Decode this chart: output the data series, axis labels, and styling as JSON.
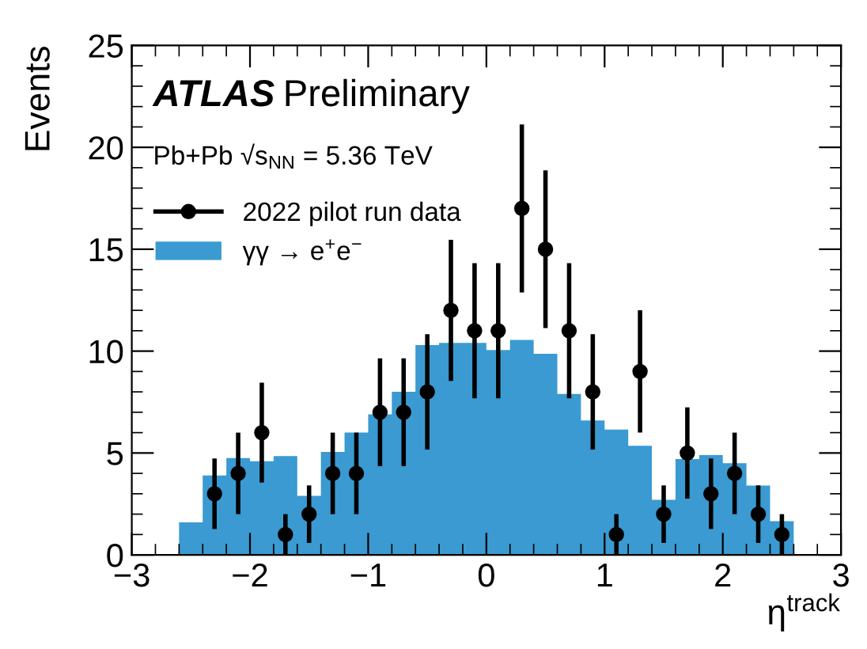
{
  "chart_data": {
    "type": "histogram",
    "xlabel": "η$^{track}$",
    "ylabel": "Events",
    "annotations": [
      "ATLAS",
      "Preliminary",
      "Pb+Pb √s$_{NN}$ = 5.36 TeV"
    ],
    "xlim": [
      -3,
      3
    ],
    "xticks": [
      -3,
      -2,
      -1,
      0,
      1,
      2,
      3
    ],
    "ylim": [
      0,
      25
    ],
    "yticks": [
      0,
      5,
      10,
      15,
      20,
      25
    ],
    "legend": "top left",
    "grid": false,
    "series": [
      {
        "type": "histogram",
        "name": "γγ → e$^{+}$e$^{−}$",
        "color": "#3a9ad1",
        "bins": [
          -3.0,
          -2.8,
          -2.6,
          -2.4,
          -2.2,
          -2.0,
          -1.8,
          -1.6,
          -1.4,
          -1.2,
          -1.0,
          -0.8,
          -0.6,
          -0.4,
          -0.2,
          0.0,
          0.2,
          0.4,
          0.6,
          0.8,
          1.0,
          1.2,
          1.4,
          1.6,
          1.8,
          2.0,
          2.2,
          2.4,
          2.6,
          2.8,
          3.0
        ],
        "values": [
          0,
          0,
          1.6,
          3.9,
          4.75,
          4.6,
          4.85,
          2.9,
          5.05,
          6.0,
          6.9,
          8.0,
          10.3,
          10.4,
          10.4,
          10.05,
          10.55,
          9.87,
          7.9,
          6.6,
          6.15,
          5.35,
          2.7,
          4.7,
          4.9,
          4.5,
          3.4,
          1.65,
          0,
          0
        ]
      },
      {
        "type": "scatter",
        "name": "2022 pilot run data",
        "color": "#000000",
        "marker": "circle",
        "x": [
          -2.3,
          -2.1,
          -1.9,
          -1.7,
          -1.5,
          -1.3,
          -1.1,
          -0.9,
          -0.7,
          -0.5,
          -0.3,
          -0.1,
          0.1,
          0.3,
          0.5,
          0.7,
          0.9,
          1.1,
          1.3,
          1.5,
          1.7,
          1.9,
          2.1,
          2.3,
          2.5
        ],
        "values": [
          3,
          4,
          6,
          1,
          2,
          4,
          4,
          7,
          7,
          8,
          12,
          11,
          11,
          17,
          15,
          11,
          8,
          1,
          9,
          2,
          5,
          3,
          4,
          2,
          1
        ],
        "errors": [
          1.73,
          2,
          2.45,
          1,
          1.41,
          2,
          2,
          2.65,
          2.65,
          2.83,
          3.46,
          3.32,
          3.32,
          4.12,
          3.87,
          3.32,
          2.83,
          1,
          3,
          1.41,
          2.24,
          1.73,
          2,
          1.41,
          1
        ]
      }
    ]
  }
}
